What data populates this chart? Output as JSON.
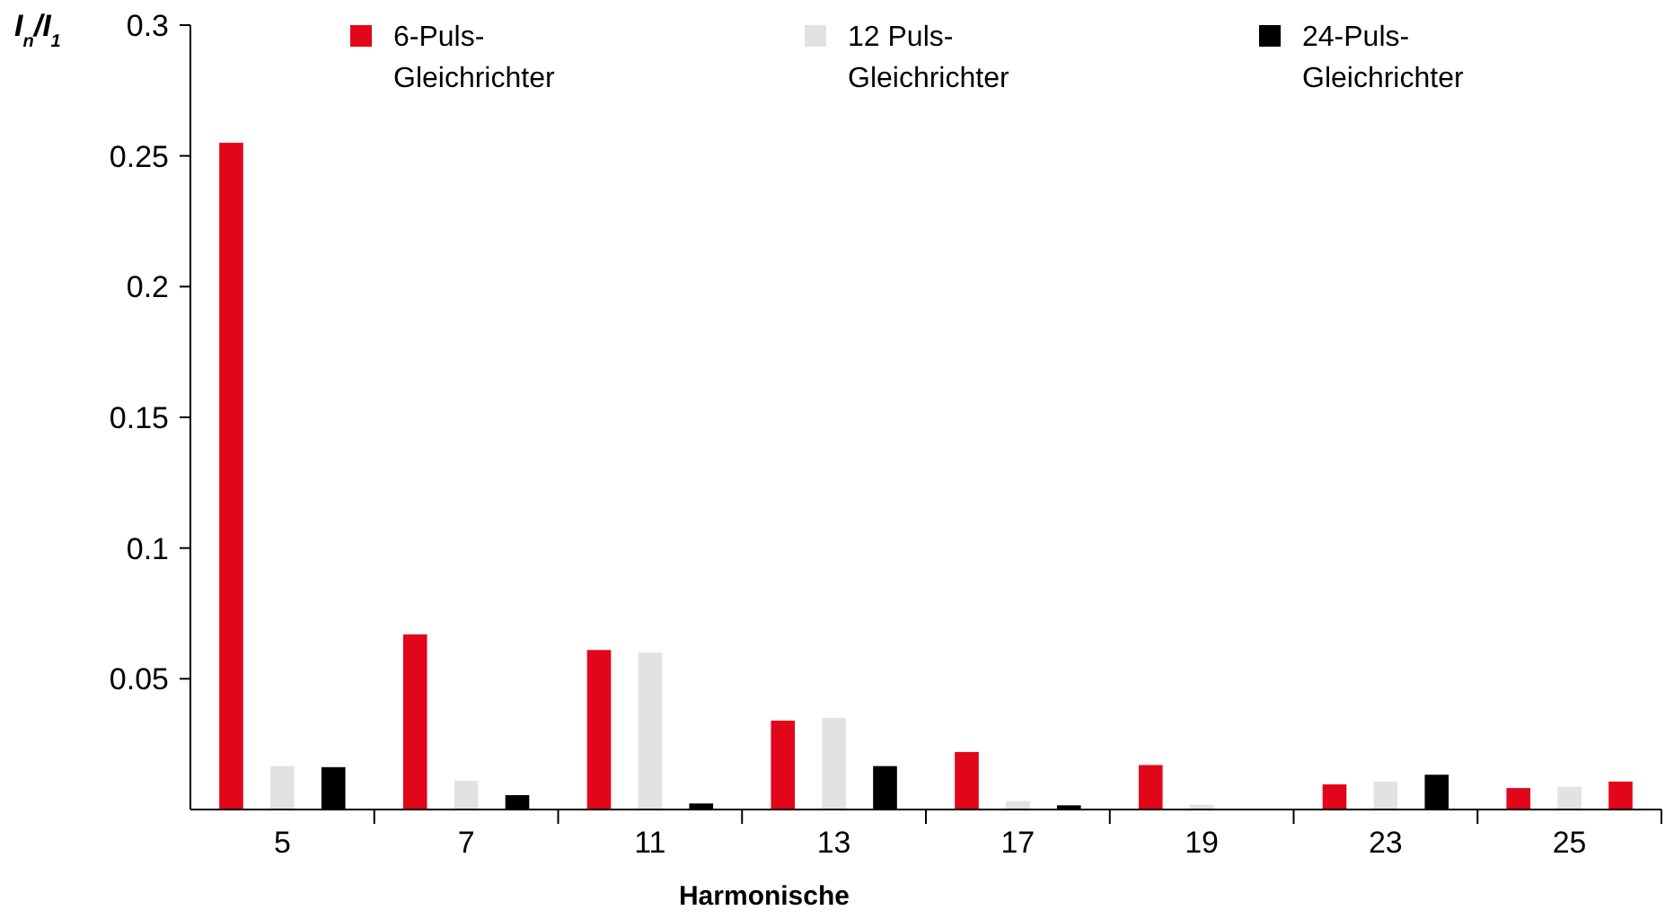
{
  "chart_data": {
    "type": "bar",
    "ylabel": "I$_{n}$/I$_{1}$",
    "xlabel": "Harmonische",
    "categories": [
      "5",
      "7",
      "11",
      "13",
      "17",
      "19",
      "23",
      "25"
    ],
    "ylim": [
      0,
      0.3
    ],
    "yticks": [
      0.05,
      0.1,
      0.15,
      0.2,
      0.25,
      0.3
    ],
    "grid": false,
    "legend": "top",
    "series": [
      {
        "name": "6-Puls-Gleichrichter",
        "color": "#e2061b",
        "values": [
          0.255,
          0.067,
          0.061,
          0.034,
          0.022,
          0.017,
          0.0096,
          0.0082
        ]
      },
      {
        "name": "12 Puls-Gleichrichter",
        "color": "#e2e2e2",
        "values": [
          0.0166,
          0.011,
          0.06,
          0.035,
          0.0032,
          0.0018,
          0.0107,
          0.0087
        ]
      },
      {
        "name": "24-Puls-Gleichrichter",
        "color": "#000000",
        "colors": [
          "#000000",
          "#000000",
          "#000000",
          "#000000",
          "#000000",
          null,
          "#000000",
          "#e2061b"
        ],
        "values": [
          0.0162,
          0.0055,
          0.0023,
          0.0166,
          0.0016,
          null,
          0.0133,
          0.0107
        ]
      }
    ]
  }
}
